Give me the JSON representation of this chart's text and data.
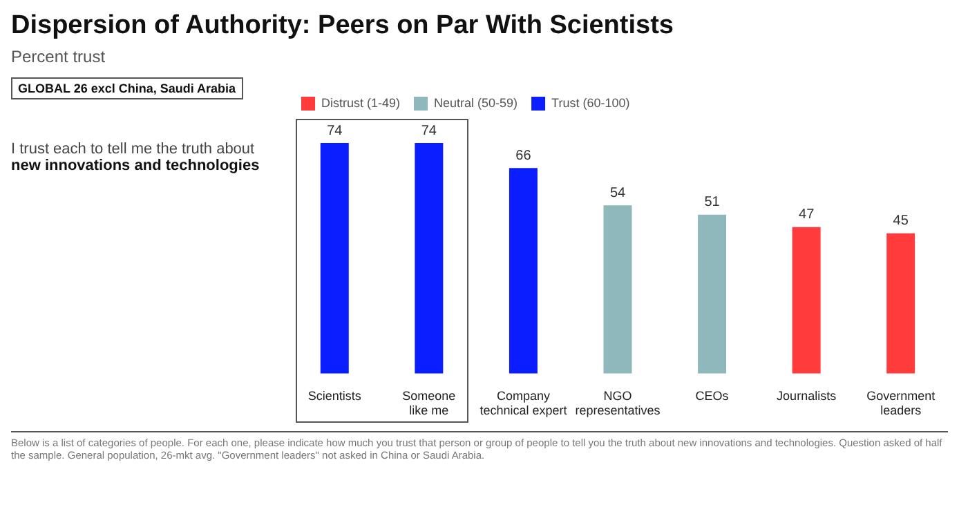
{
  "chart_data": {
    "type": "bar",
    "title": "Dispersion of Authority: Peers on Par With Scientists",
    "subtitle": "Percent trust",
    "categories": [
      "Scientists",
      "Someone like me",
      "Company technical expert",
      "NGO representatives",
      "CEOs",
      "Journalists",
      "Government leaders"
    ],
    "series": [
      {
        "name": "Distrust (1-49)",
        "color": "#ff3b3b",
        "values": [
          null,
          null,
          null,
          null,
          null,
          47,
          45
        ]
      },
      {
        "name": "Neutral (50-59)",
        "color": "#8fb8bd",
        "values": [
          null,
          null,
          null,
          54,
          51,
          null,
          null
        ]
      },
      {
        "name": "Trust (60-100)",
        "color": "#0a1eff",
        "values": [
          74,
          74,
          66,
          null,
          null,
          null,
          null
        ]
      }
    ],
    "data_labels": true,
    "legend": "top",
    "grid": false,
    "annotations": [
      "GLOBAL 26 excl China, Saudi Arabia",
      "I trust each to tell me the truth about",
      "new innovations and technologies",
      "Below is a list of categories of people. For each one, please indicate how much you trust that person or group of people to tell you the truth about new innovations and technologies. Question asked of half the sample. General population, 26-mkt avg. \"Government leaders\" not asked in China or Saudi Arabia."
    ]
  }
}
